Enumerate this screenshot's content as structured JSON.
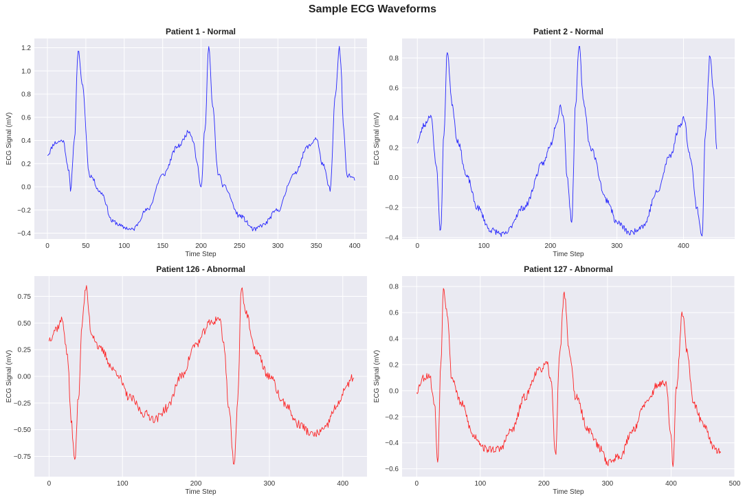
{
  "figure": {
    "title": "Sample ECG Waveforms"
  },
  "chart_data": [
    {
      "type": "line",
      "title": "Patient 1 - Normal",
      "xlabel": "Time Step",
      "ylabel": "ECG Signal (mV)",
      "color": "#0000ff",
      "xlim": [
        -17,
        416
      ],
      "ylim": [
        -0.45,
        1.28
      ],
      "xticks": [
        0,
        50,
        100,
        150,
        200,
        250,
        300,
        350,
        400
      ],
      "xtick_labels": [
        "0",
        "50",
        "100",
        "150",
        "200",
        "250",
        "300",
        "350",
        "400"
      ],
      "yticks": [
        -0.4,
        -0.2,
        0.0,
        0.2,
        0.4,
        0.6,
        0.8,
        1.0,
        1.2
      ],
      "ytick_labels": [
        "−0.4",
        "−0.2",
        "0.0",
        "0.2",
        "0.4",
        "0.6",
        "0.8",
        "1.0",
        "1.2"
      ],
      "anchors_x": [
        0,
        10,
        20,
        28,
        30,
        35,
        40,
        45,
        55,
        70,
        85,
        100,
        110,
        130,
        150,
        170,
        185,
        190,
        195,
        200,
        205,
        210,
        215,
        222,
        230,
        250,
        270,
        280,
        300,
        320,
        340,
        350,
        358,
        368,
        375,
        380,
        382,
        385,
        390,
        393,
        400
      ],
      "anchors_y": [
        0.28,
        0.38,
        0.4,
        0.15,
        -0.05,
        0.4,
        1.18,
        0.9,
        0.1,
        -0.05,
        -0.3,
        -0.35,
        -0.37,
        -0.2,
        0.1,
        0.35,
        0.48,
        0.4,
        0.2,
        -0.02,
        0.5,
        1.21,
        0.7,
        0.12,
        0.0,
        -0.25,
        -0.37,
        -0.33,
        -0.2,
        0.1,
        0.35,
        0.42,
        0.2,
        -0.02,
        0.8,
        1.2,
        1.05,
        0.55,
        0.1,
        0.1,
        0.06
      ],
      "n_points": 400,
      "noise": 0.02,
      "seed": 11
    },
    {
      "type": "line",
      "title": "Patient 2 - Normal",
      "xlabel": "Time Step",
      "ylabel": "ECG Signal (mV)",
      "color": "#0000ff",
      "xlim": [
        -23,
        477
      ],
      "ylim": [
        -0.41,
        0.93
      ],
      "xticks": [
        0,
        100,
        200,
        300,
        400
      ],
      "xtick_labels": [
        "0",
        "100",
        "200",
        "300",
        "400"
      ],
      "yticks": [
        -0.4,
        -0.2,
        0.0,
        0.2,
        0.4,
        0.6,
        0.8
      ],
      "ytick_labels": [
        "−0.4",
        "−0.2",
        "0.0",
        "0.2",
        "0.4",
        "0.6",
        "0.8"
      ],
      "anchors_x": [
        0,
        10,
        20,
        28,
        35,
        40,
        45,
        52,
        60,
        75,
        90,
        110,
        130,
        160,
        190,
        200,
        210,
        215,
        220,
        225,
        232,
        238,
        243,
        250,
        260,
        285,
        300,
        320,
        340,
        360,
        380,
        395,
        400,
        410,
        420,
        428,
        433,
        440,
        445,
        450
      ],
      "anchors_y": [
        0.24,
        0.35,
        0.42,
        0.1,
        -0.36,
        0.3,
        0.85,
        0.5,
        0.25,
        0.0,
        -0.2,
        -0.35,
        -0.38,
        -0.2,
        0.1,
        0.22,
        0.38,
        0.48,
        0.4,
        0.0,
        -0.29,
        0.5,
        0.88,
        0.5,
        0.2,
        -0.15,
        -0.3,
        -0.37,
        -0.32,
        -0.1,
        0.15,
        0.35,
        0.4,
        0.15,
        -0.2,
        -0.39,
        0.3,
        0.82,
        0.6,
        0.2
      ],
      "n_points": 450,
      "noise": 0.02,
      "seed": 23
    },
    {
      "type": "line",
      "title": "Patient 126 - Abnormal",
      "xlabel": "Time Step",
      "ylabel": "ECG Signal (mV)",
      "color": "#ff0000",
      "xlim": [
        -20,
        433
      ],
      "ylim": [
        -0.94,
        0.94
      ],
      "xticks": [
        0,
        100,
        200,
        300,
        400
      ],
      "xtick_labels": [
        "0",
        "100",
        "200",
        "300",
        "400"
      ],
      "yticks": [
        -0.75,
        -0.5,
        -0.25,
        0.0,
        0.25,
        0.5,
        0.75
      ],
      "ytick_labels": [
        "−0.75",
        "−0.50",
        "−0.25",
        "0.00",
        "0.25",
        "0.50",
        "0.75"
      ],
      "anchors_x": [
        0,
        10,
        18,
        25,
        30,
        35,
        40,
        45,
        50,
        58,
        70,
        90,
        110,
        130,
        145,
        160,
        180,
        200,
        220,
        232,
        238,
        245,
        252,
        257,
        262,
        268,
        280,
        300,
        320,
        340,
        360,
        375,
        390,
        405,
        415
      ],
      "anchors_y": [
        0.35,
        0.45,
        0.53,
        0.2,
        -0.4,
        -0.8,
        -0.2,
        0.5,
        0.83,
        0.4,
        0.25,
        0.05,
        -0.2,
        -0.35,
        -0.4,
        -0.3,
        0.0,
        0.3,
        0.5,
        0.55,
        0.3,
        -0.3,
        -0.85,
        -0.2,
        0.85,
        0.6,
        0.25,
        0.0,
        -0.25,
        -0.45,
        -0.55,
        -0.5,
        -0.3,
        -0.1,
        0.0
      ],
      "n_points": 415,
      "noise": 0.04,
      "seed": 37
    },
    {
      "type": "line",
      "title": "Patient 127 - Abnormal",
      "xlabel": "Time Step",
      "ylabel": "ECG Signal (mV)",
      "color": "#ff0000",
      "xlim": [
        -23,
        500
      ],
      "ylim": [
        -0.66,
        0.88
      ],
      "xticks": [
        0,
        100,
        200,
        300,
        400,
        500
      ],
      "xtick_labels": [
        "0",
        "100",
        "200",
        "300",
        "400",
        "500"
      ],
      "yticks": [
        -0.6,
        -0.4,
        -0.2,
        0.0,
        0.2,
        0.4,
        0.6,
        0.8
      ],
      "ytick_labels": [
        "−0.6",
        "−0.4",
        "−0.2",
        "0.0",
        "0.2",
        "0.4",
        "0.6",
        "0.8"
      ],
      "anchors_x": [
        0,
        10,
        20,
        28,
        33,
        38,
        42,
        48,
        55,
        70,
        90,
        110,
        130,
        150,
        170,
        190,
        205,
        212,
        218,
        225,
        232,
        240,
        250,
        270,
        290,
        300,
        320,
        340,
        360,
        380,
        392,
        400,
        403,
        408,
        418,
        425,
        435,
        450,
        470,
        478
      ],
      "anchors_y": [
        0.0,
        0.1,
        0.12,
        -0.1,
        -0.55,
        0.2,
        0.8,
        0.6,
        0.1,
        -0.1,
        -0.35,
        -0.45,
        -0.45,
        -0.3,
        -0.05,
        0.15,
        0.2,
        0.05,
        -0.5,
        0.3,
        0.75,
        0.3,
        -0.05,
        -0.3,
        -0.45,
        -0.55,
        -0.5,
        -0.3,
        -0.1,
        0.05,
        0.05,
        -0.35,
        -0.6,
        0.0,
        0.6,
        0.3,
        -0.1,
        -0.25,
        -0.45,
        -0.48
      ],
      "n_points": 478,
      "noise": 0.03,
      "seed": 53
    }
  ]
}
